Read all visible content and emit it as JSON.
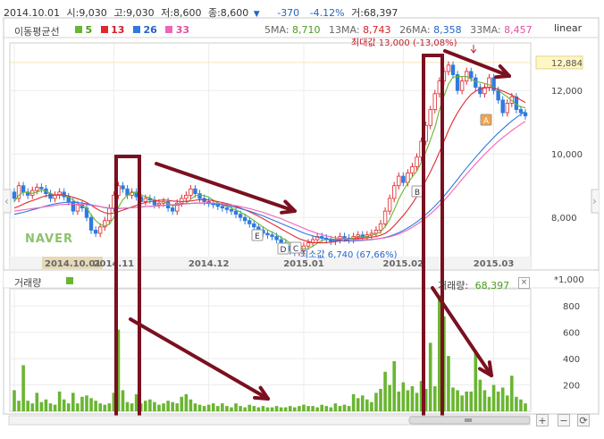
{
  "header": {
    "date": "2014.10.01",
    "open_label": "시:",
    "open": "9,030",
    "high_label": "고:",
    "high": "9,030",
    "low_label": "저:",
    "low": "8,600",
    "close_label": "종:",
    "close": "8,600",
    "change": "-370",
    "change_pct": "-4.12%",
    "volume_label": "거:",
    "volume": "68,397"
  },
  "ma_legend": {
    "title": "이동평균선",
    "items": [
      {
        "period": "5",
        "color": "#6ab532"
      },
      {
        "period": "13",
        "color": "#e0282e"
      },
      {
        "period": "26",
        "color": "#2e7ae0"
      },
      {
        "period": "33",
        "color": "#f064b4"
      }
    ]
  },
  "ma_values": [
    {
      "label": "5MA:",
      "value": "8,710",
      "color": "#4a9e1a"
    },
    {
      "label": "13MA:",
      "value": "8,743",
      "color": "#d21e24"
    },
    {
      "label": "26MA:",
      "value": "8,358",
      "color": "#2364c8"
    },
    {
      "label": "33MA:",
      "value": "8,457",
      "color": "#e0509e"
    }
  ],
  "scale_label": "linear",
  "watermark": "NAVER",
  "annotations": {
    "max_text": "최대값 13,000 (-13,08%)",
    "min_text": "최소값 6,740 (67,66%)",
    "markers": [
      "A",
      "B",
      "E",
      "D",
      "C"
    ]
  },
  "volume_panel": {
    "title": "거래량",
    "legend_label": "거래량:",
    "legend_value": "68,397",
    "unit_label": "*1,000",
    "close_icon": "close-icon"
  },
  "controls": {
    "zoom_in": "+",
    "zoom_out": "−",
    "reset": "⟳"
  },
  "colors": {
    "up": "#e0282e",
    "down": "#2e7ae0",
    "volume": "#6ab532",
    "overlay": "#7a1020"
  },
  "chart_data": [
    {
      "type": "candlestick",
      "x_labels": [
        "2014.10.01",
        "2014.11",
        "2014.12",
        "2015.01",
        "2015.02",
        "2015.03"
      ],
      "y_ticks": [
        8000,
        10000,
        12000
      ],
      "y_highlight": 12884,
      "y_highlight_label": "12,884",
      "ylim": [
        6400,
        13500
      ],
      "y_tick_labels": [
        "8,000",
        "10,000",
        "12,000"
      ],
      "close_values": [
        8600,
        9000,
        8800,
        8700,
        8850,
        8950,
        8900,
        8750,
        8600,
        8700,
        8800,
        8650,
        8500,
        8200,
        8400,
        8300,
        8000,
        7600,
        7500,
        7700,
        7900,
        8300,
        8700,
        9000,
        8900,
        8700,
        8800,
        8650,
        8500,
        8600,
        8550,
        8400,
        8450,
        8500,
        8300,
        8200,
        8450,
        8600,
        8700,
        8900,
        8750,
        8600,
        8500,
        8450,
        8400,
        8350,
        8300,
        8250,
        8200,
        8100,
        8000,
        7900,
        7800,
        7700,
        7600,
        7500,
        7450,
        7400,
        7300,
        7200,
        7100,
        6950,
        6900,
        6950,
        7100,
        7200,
        7300,
        7400,
        7350,
        7300,
        7250,
        7300,
        7400,
        7350,
        7300,
        7400,
        7450,
        7400,
        7450,
        7500,
        7600,
        7800,
        8200,
        8600,
        9000,
        9300,
        9100,
        9400,
        9600,
        9900,
        10400,
        10900,
        11400,
        11900,
        12300,
        12600,
        12800,
        12500,
        12000,
        12300,
        12600,
        12400,
        12100,
        11900,
        12100,
        12400,
        12000,
        11700,
        11300,
        11600,
        11800,
        11400,
        11300,
        11200
      ],
      "ma_series": [
        {
          "name": "5MA",
          "values": [
            8500,
            8700,
            8800,
            8780,
            8760,
            8800,
            8860,
            8830,
            8760,
            8700,
            8700,
            8700,
            8650,
            8550,
            8450,
            8370,
            8300,
            8080,
            7900,
            7780,
            7730,
            7780,
            8000,
            8320,
            8560,
            8700,
            8780,
            8790,
            8720,
            8650,
            8620,
            8540,
            8500,
            8500,
            8440,
            8370,
            8380,
            8410,
            8450,
            8570,
            8680,
            8710,
            8690,
            8640,
            8540,
            8460,
            8400,
            8350,
            8300,
            8240,
            8170,
            8090,
            8000,
            7900,
            7800,
            7700,
            7610,
            7540,
            7460,
            7370,
            7290,
            7190,
            7090,
            7020,
            7010,
            7020,
            7090,
            7190,
            7270,
            7310,
            7320,
            7310,
            7320,
            7320,
            7320,
            7350,
            7380,
            7380,
            7400,
            7440,
            7480,
            7550,
            7710,
            7940,
            8240,
            8580,
            8840,
            9080,
            9280,
            9460,
            9740,
            10060,
            10440,
            10840,
            11380,
            11820,
            12200,
            12420,
            12440,
            12440,
            12440,
            12360,
            12280,
            12260,
            12220,
            12180,
            12100,
            12020,
            11900,
            11800,
            11680,
            11560,
            11480,
            11460
          ]
        },
        {
          "name": "13MA",
          "values": [
            8300,
            8350,
            8420,
            8480,
            8530,
            8580,
            8640,
            8680,
            8700,
            8710,
            8720,
            8710,
            8680,
            8640,
            8590,
            8540,
            8470,
            8380,
            8290,
            8210,
            8150,
            8120,
            8140,
            8180,
            8230,
            8280,
            8330,
            8380,
            8430,
            8470,
            8500,
            8520,
            8540,
            8550,
            8540,
            8520,
            8510,
            8500,
            8510,
            8520,
            8540,
            8560,
            8560,
            8550,
            8530,
            8500,
            8470,
            8440,
            8400,
            8350,
            8300,
            8240,
            8180,
            8110,
            8040,
            7960,
            7880,
            7800,
            7720,
            7640,
            7560,
            7480,
            7400,
            7330,
            7280,
            7240,
            7210,
            7200,
            7200,
            7210,
            7220,
            7240,
            7260,
            7280,
            7300,
            7320,
            7340,
            7350,
            7360,
            7380,
            7400,
            7440,
            7500,
            7600,
            7740,
            7900,
            8060,
            8240,
            8440,
            8660,
            8900,
            9160,
            9440,
            9740,
            10060,
            10400,
            10740,
            11040,
            11300,
            11520,
            11720,
            11880,
            11980,
            12040,
            12080,
            12100,
            12080,
            12040,
            11980,
            11920,
            11860,
            11780,
            11700,
            11620
          ]
        },
        {
          "name": "26MA",
          "values": [
            8100,
            8130,
            8160,
            8200,
            8240,
            8280,
            8320,
            8360,
            8400,
            8430,
            8450,
            8470,
            8480,
            8480,
            8470,
            8450,
            8430,
            8400,
            8370,
            8340,
            8310,
            8290,
            8280,
            8280,
            8290,
            8300,
            8310,
            8320,
            8330,
            8340,
            8350,
            8360,
            8370,
            8380,
            8390,
            8400,
            8410,
            8420,
            8430,
            8440,
            8450,
            8450,
            8450,
            8440,
            8430,
            8420,
            8400,
            8380,
            8350,
            8320,
            8280,
            8240,
            8200,
            8150,
            8100,
            8050,
            7990,
            7930,
            7870,
            7810,
            7750,
            7690,
            7630,
            7570,
            7510,
            7460,
            7420,
            7380,
            7350,
            7320,
            7300,
            7280,
            7270,
            7260,
            7260,
            7260,
            7270,
            7280,
            7290,
            7300,
            7320,
            7340,
            7370,
            7410,
            7460,
            7520,
            7590,
            7670,
            7760,
            7860,
            7970,
            8090,
            8220,
            8360,
            8510,
            8670,
            8840,
            9020,
            9200,
            9380,
            9560,
            9730,
            9900,
            10060,
            10220,
            10370,
            10520,
            10660,
            10790,
            10920,
            11040,
            11150,
            11250,
            11340
          ]
        },
        {
          "name": "33MA",
          "values": [
            8200,
            8220,
            8240,
            8260,
            8280,
            8300,
            8320,
            8340,
            8360,
            8380,
            8400,
            8410,
            8420,
            8420,
            8420,
            8410,
            8400,
            8380,
            8360,
            8340,
            8320,
            8300,
            8290,
            8290,
            8290,
            8300,
            8310,
            8320,
            8330,
            8340,
            8350,
            8360,
            8370,
            8380,
            8390,
            8400,
            8410,
            8420,
            8430,
            8440,
            8450,
            8460,
            8460,
            8460,
            8450,
            8440,
            8430,
            8410,
            8390,
            8370,
            8340,
            8310,
            8280,
            8240,
            8200,
            8160,
            8110,
            8060,
            8010,
            7960,
            7900,
            7840,
            7780,
            7720,
            7660,
            7600,
            7550,
            7500,
            7460,
            7420,
            7390,
            7360,
            7340,
            7320,
            7310,
            7300,
            7300,
            7300,
            7300,
            7310,
            7320,
            7340,
            7360,
            7390,
            7430,
            7480,
            7540,
            7610,
            7690,
            7780,
            7880,
            7990,
            8110,
            8240,
            8380,
            8530,
            8690,
            8860,
            9030,
            9200,
            9370,
            9530,
            9690,
            9840,
            9990,
            10130,
            10270,
            10400,
            10520,
            10630,
            10740,
            10840,
            10940,
            11030
          ]
        }
      ]
    },
    {
      "type": "bar",
      "title": "거래량",
      "y_ticks": [
        200,
        400,
        600,
        800
      ],
      "y_tick_labels": [
        "200",
        "400",
        "600",
        "800"
      ],
      "ylim": [
        0,
        930
      ],
      "values": [
        160,
        80,
        350,
        80,
        60,
        140,
        70,
        90,
        60,
        50,
        150,
        90,
        60,
        140,
        60,
        110,
        120,
        100,
        80,
        60,
        50,
        60,
        140,
        620,
        160,
        70,
        60,
        130,
        60,
        80,
        90,
        70,
        50,
        60,
        80,
        70,
        60,
        110,
        130,
        90,
        60,
        50,
        40,
        50,
        60,
        40,
        60,
        40,
        30,
        60,
        40,
        30,
        50,
        40,
        30,
        40,
        30,
        30,
        40,
        30,
        30,
        40,
        30,
        40,
        50,
        40,
        40,
        30,
        50,
        40,
        30,
        60,
        40,
        50,
        40,
        130,
        100,
        120,
        90,
        70,
        140,
        170,
        300,
        200,
        380,
        150,
        220,
        160,
        190,
        140,
        230,
        170,
        520,
        190,
        880,
        720,
        420,
        180,
        160,
        120,
        150,
        150,
        460,
        240,
        160,
        110,
        200,
        150,
        180,
        120,
        270,
        110,
        90,
        60
      ]
    }
  ]
}
